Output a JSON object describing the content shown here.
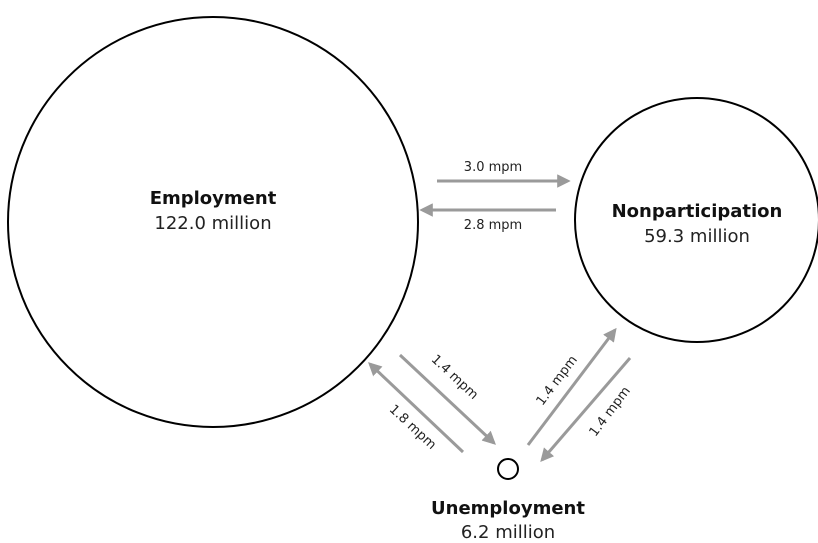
{
  "nodes": [
    {
      "label": "Employment",
      "value": "122.0 million"
    },
    {
      "label": "Nonparticipation",
      "value": "59.3 million"
    },
    {
      "label": "Unemployment",
      "value": "6.2 million"
    }
  ],
  "edges": [
    {
      "label": "3.0 mpm"
    },
    {
      "label": "2.8 mpm"
    },
    {
      "label": "1.4 mpm"
    },
    {
      "label": "1.8 mpm"
    },
    {
      "label": "1.4 mpm"
    },
    {
      "label": "1.4 mpm"
    }
  ]
}
